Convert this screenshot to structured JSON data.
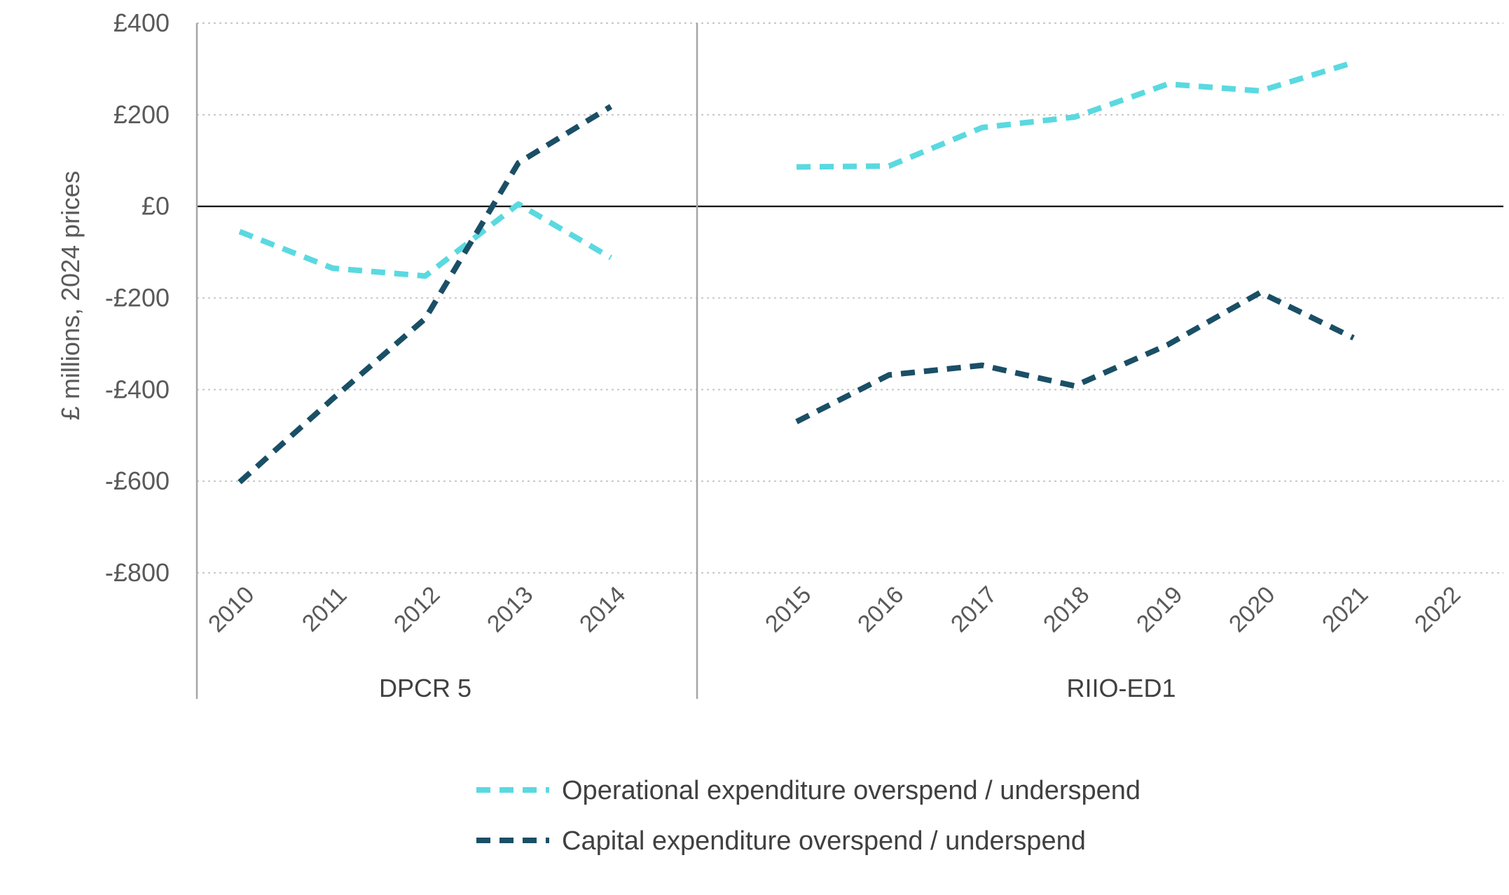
{
  "chart_data": {
    "type": "line",
    "title": "",
    "xlabel": "",
    "ylabel": "£ millions, 2024 prices",
    "ylim": [
      -800,
      400
    ],
    "y_ticks": [
      400,
      200,
      0,
      -200,
      -400,
      -600,
      -800
    ],
    "y_tick_labels": [
      "£400",
      "£200",
      "£0",
      "-£200",
      "-£400",
      "-£600",
      "-£800"
    ],
    "categories": [
      "2010",
      "2011",
      "2012",
      "2013",
      "2014",
      "2015",
      "2016",
      "2017",
      "2018",
      "2019",
      "2020",
      "2021",
      "2022"
    ],
    "groups": [
      {
        "label": "DPCR 5",
        "categories": [
          "2010",
          "2011",
          "2012",
          "2013",
          "2014"
        ]
      },
      {
        "label": "RIIO-ED1",
        "categories": [
          "2015",
          "2016",
          "2017",
          "2018",
          "2019",
          "2020",
          "2021",
          "2022"
        ]
      }
    ],
    "grid": true,
    "legend_position": "bottom",
    "series": [
      {
        "name": "Operational expenditure overspend / underspend",
        "color": "#5ad9e0",
        "segments": [
          {
            "x": [
              "2010",
              "2011",
              "2012",
              "2013",
              "2014"
            ],
            "y": [
              -55,
              -135,
              -152,
              5,
              -112
            ]
          },
          {
            "x": [
              "2015",
              "2016",
              "2017",
              "2018",
              "2019",
              "2020",
              "2021"
            ],
            "y": [
              86,
              88,
              172,
              195,
              267,
              252,
              314
            ]
          }
        ]
      },
      {
        "name": "Capital expenditure overspend / underspend",
        "color": "#1a4f66",
        "segments": [
          {
            "x": [
              "2010",
              "2011",
              "2012",
              "2013",
              "2014"
            ],
            "y": [
              -602,
              -420,
              -245,
              95,
              218
            ]
          },
          {
            "x": [
              "2015",
              "2016",
              "2017",
              "2018",
              "2019",
              "2020",
              "2021"
            ],
            "y": [
              -470,
              -368,
              -347,
              -392,
              -302,
              -188,
              -287
            ]
          }
        ]
      }
    ]
  }
}
